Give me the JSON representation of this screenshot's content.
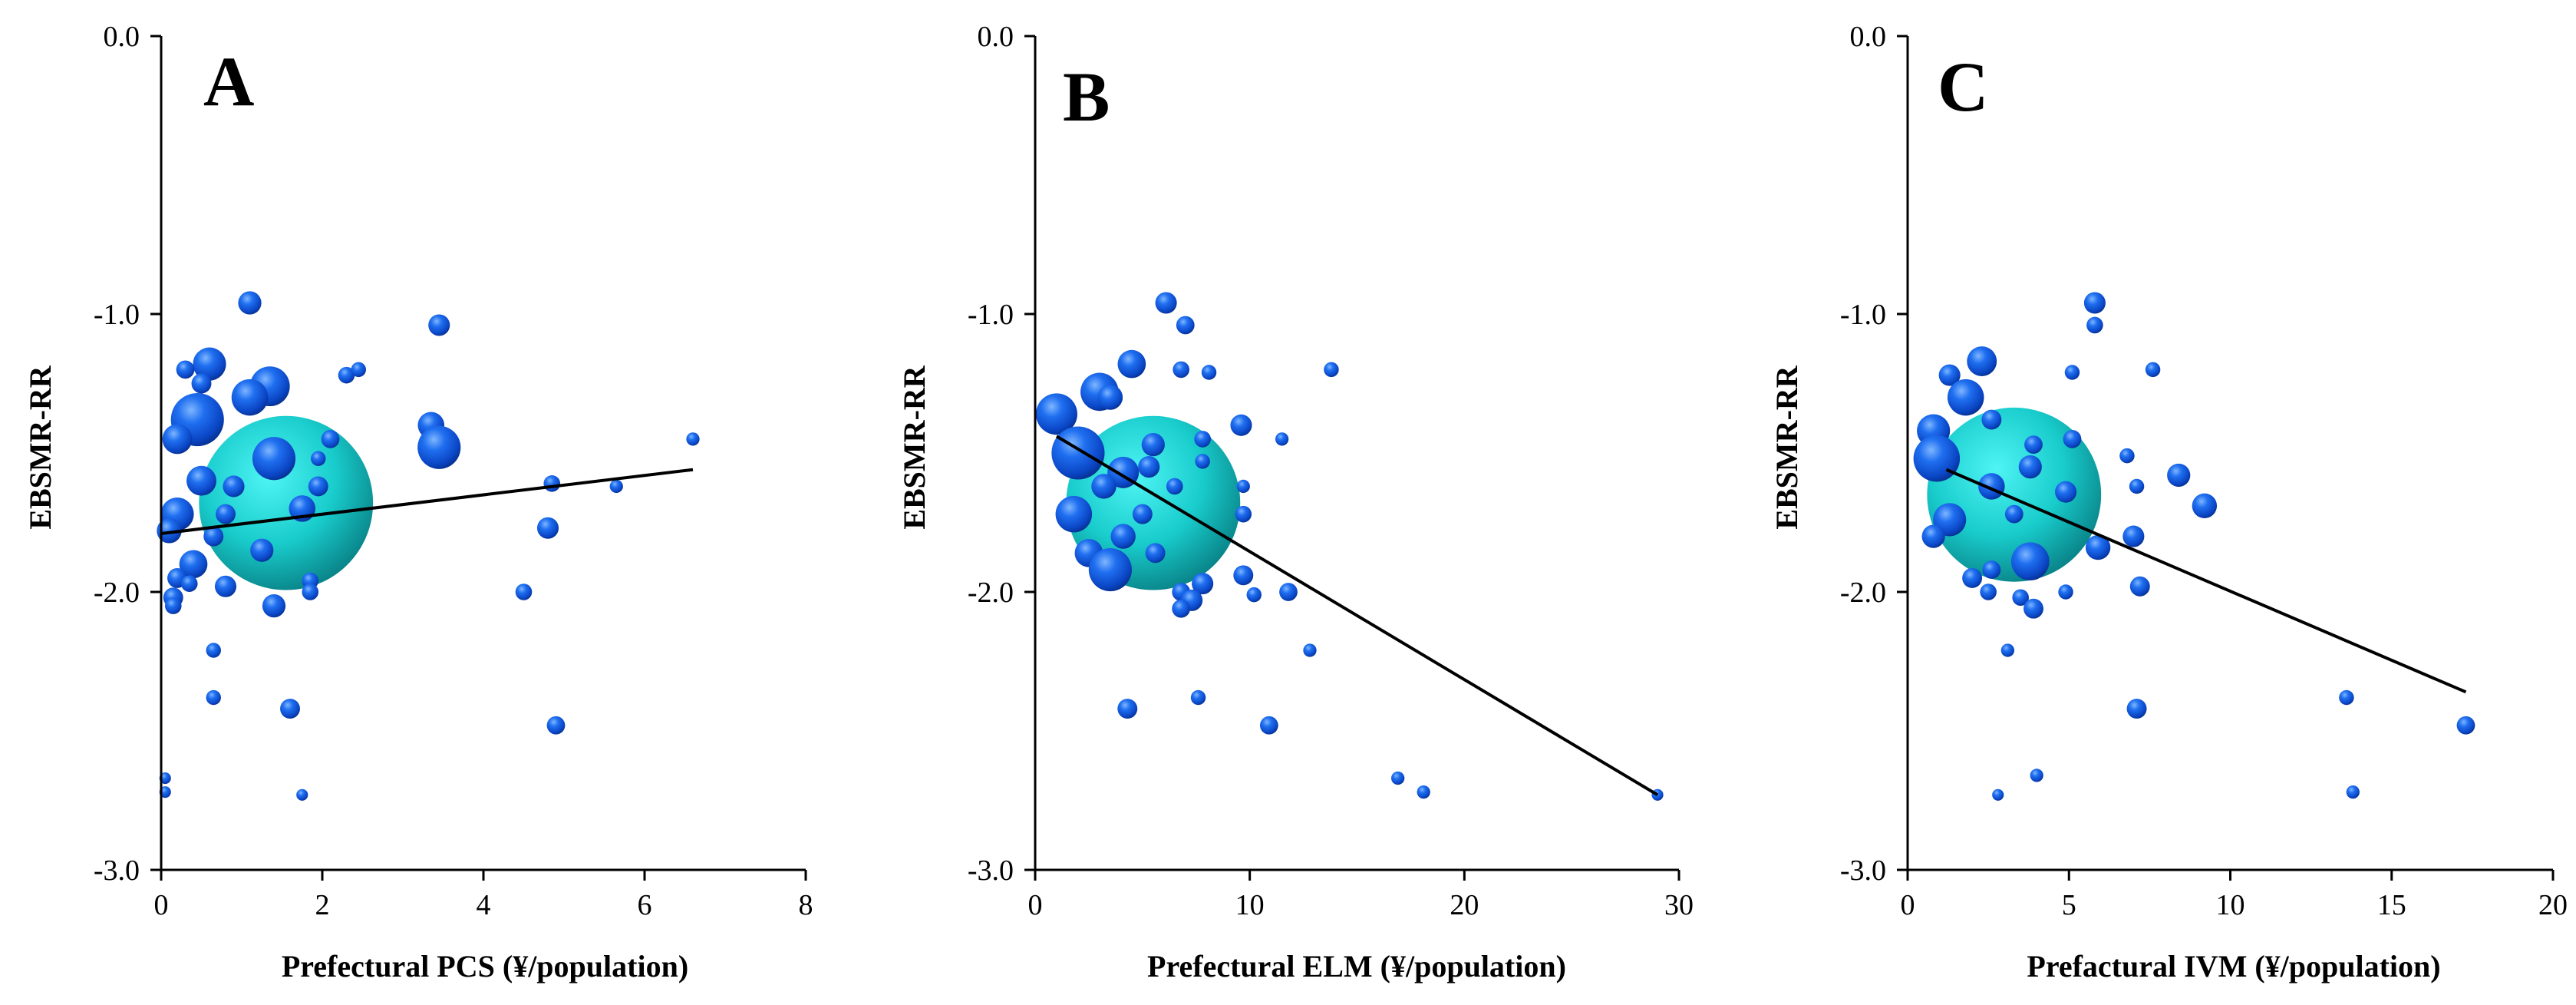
{
  "figure": {
    "panels": [
      "A",
      "B",
      "C"
    ]
  },
  "chart_data": [
    {
      "type": "scatter",
      "panel": "A",
      "xlabel": "Prefectural PCS (¥/population)",
      "ylabel": "EBSMR-RR",
      "xlim": [
        0,
        8
      ],
      "ylim": [
        -3.0,
        0.0
      ],
      "xticks": [
        0,
        2,
        4,
        6,
        8
      ],
      "xtick_labels": [
        "0",
        "2",
        "4",
        "6",
        "8"
      ],
      "yticks": [
        0.0,
        -1.0,
        -2.0,
        -3.0
      ],
      "ytick_labels": [
        "0.0",
        "-1.0",
        "-2.0",
        "-3.0"
      ],
      "trendline": {
        "x": [
          0,
          6.6
        ],
        "y": [
          -1.79,
          -1.56
        ]
      },
      "highlight": {
        "x": 1.55,
        "y": -1.68,
        "r": 5.0
      },
      "points": [
        {
          "x": 1.1,
          "y": -0.96,
          "r": 1.4
        },
        {
          "x": 3.45,
          "y": -1.04,
          "r": 1.3
        },
        {
          "x": 0.6,
          "y": -1.18,
          "r": 2.0
        },
        {
          "x": 1.35,
          "y": -1.26,
          "r": 2.4
        },
        {
          "x": 0.3,
          "y": -1.2,
          "r": 1.1
        },
        {
          "x": 0.5,
          "y": -1.25,
          "r": 1.2
        },
        {
          "x": 2.3,
          "y": -1.22,
          "r": 1.0
        },
        {
          "x": 2.45,
          "y": -1.2,
          "r": 0.9
        },
        {
          "x": 0.45,
          "y": -1.38,
          "r": 3.2
        },
        {
          "x": 1.1,
          "y": -1.3,
          "r": 2.2
        },
        {
          "x": 3.35,
          "y": -1.4,
          "r": 1.6
        },
        {
          "x": 3.45,
          "y": -1.48,
          "r": 2.6
        },
        {
          "x": 2.1,
          "y": -1.45,
          "r": 1.1
        },
        {
          "x": 1.4,
          "y": -1.52,
          "r": 2.6
        },
        {
          "x": 0.2,
          "y": -1.45,
          "r": 1.8
        },
        {
          "x": 1.95,
          "y": -1.52,
          "r": 0.9
        },
        {
          "x": 6.6,
          "y": -1.45,
          "r": 0.8
        },
        {
          "x": 0.5,
          "y": -1.6,
          "r": 1.8
        },
        {
          "x": 0.9,
          "y": -1.62,
          "r": 1.3
        },
        {
          "x": 1.95,
          "y": -1.62,
          "r": 1.2
        },
        {
          "x": 4.85,
          "y": -1.61,
          "r": 1.0
        },
        {
          "x": 5.65,
          "y": -1.62,
          "r": 0.8
        },
        {
          "x": 0.2,
          "y": -1.72,
          "r": 2.0
        },
        {
          "x": 0.8,
          "y": -1.72,
          "r": 1.2
        },
        {
          "x": 1.75,
          "y": -1.7,
          "r": 1.6
        },
        {
          "x": 0.1,
          "y": -1.78,
          "r": 1.5
        },
        {
          "x": 0.65,
          "y": -1.8,
          "r": 1.2
        },
        {
          "x": 4.8,
          "y": -1.77,
          "r": 1.3
        },
        {
          "x": 1.25,
          "y": -1.85,
          "r": 1.4
        },
        {
          "x": 0.4,
          "y": -1.9,
          "r": 1.7
        },
        {
          "x": 0.2,
          "y": -1.95,
          "r": 1.2
        },
        {
          "x": 0.35,
          "y": -1.97,
          "r": 1.0
        },
        {
          "x": 0.8,
          "y": -1.98,
          "r": 1.3
        },
        {
          "x": 1.85,
          "y": -1.96,
          "r": 1.0
        },
        {
          "x": 1.85,
          "y": -2.0,
          "r": 1.0
        },
        {
          "x": 0.15,
          "y": -2.02,
          "r": 1.2
        },
        {
          "x": 0.15,
          "y": -2.05,
          "r": 1.0
        },
        {
          "x": 1.4,
          "y": -2.05,
          "r": 1.4
        },
        {
          "x": 4.5,
          "y": -2.0,
          "r": 1.0
        },
        {
          "x": 0.65,
          "y": -2.21,
          "r": 0.9
        },
        {
          "x": 0.65,
          "y": -2.38,
          "r": 0.9
        },
        {
          "x": 1.6,
          "y": -2.42,
          "r": 1.2
        },
        {
          "x": 4.9,
          "y": -2.48,
          "r": 1.1
        },
        {
          "x": 0.05,
          "y": -2.67,
          "r": 0.7
        },
        {
          "x": 0.05,
          "y": -2.72,
          "r": 0.7
        },
        {
          "x": 1.75,
          "y": -2.73,
          "r": 0.7
        }
      ]
    },
    {
      "type": "scatter",
      "panel": "B",
      "xlabel": "Prefectural ELM (¥/population)",
      "ylabel": "EBSMR-RR",
      "xlim": [
        0,
        30
      ],
      "ylim": [
        -3.0,
        0.0
      ],
      "xticks": [
        0,
        10,
        20,
        30
      ],
      "xtick_labels": [
        "0",
        "10",
        "20",
        "30"
      ],
      "yticks": [
        0.0,
        -1.0,
        -2.0,
        -3.0
      ],
      "ytick_labels": [
        "0.0",
        "-1.0",
        "-2.0",
        "-3.0"
      ],
      "trendline": {
        "x": [
          1.0,
          29.0
        ],
        "y": [
          -1.44,
          -2.73
        ]
      },
      "highlight": {
        "x": 5.5,
        "y": -1.68,
        "r": 5.0
      },
      "points": [
        {
          "x": 6.1,
          "y": -0.96,
          "r": 1.3
        },
        {
          "x": 7.0,
          "y": -1.04,
          "r": 1.1
        },
        {
          "x": 4.5,
          "y": -1.18,
          "r": 1.7
        },
        {
          "x": 3.0,
          "y": -1.28,
          "r": 2.3
        },
        {
          "x": 6.8,
          "y": -1.2,
          "r": 1.0
        },
        {
          "x": 8.1,
          "y": -1.21,
          "r": 0.9
        },
        {
          "x": 13.8,
          "y": -1.2,
          "r": 0.9
        },
        {
          "x": 1.0,
          "y": -1.36,
          "r": 2.5
        },
        {
          "x": 3.5,
          "y": -1.3,
          "r": 1.5
        },
        {
          "x": 9.6,
          "y": -1.4,
          "r": 1.3
        },
        {
          "x": 2.0,
          "y": -1.5,
          "r": 3.2
        },
        {
          "x": 5.5,
          "y": -1.47,
          "r": 1.4
        },
        {
          "x": 11.5,
          "y": -1.45,
          "r": 0.8
        },
        {
          "x": 7.8,
          "y": -1.45,
          "r": 1.0
        },
        {
          "x": 4.1,
          "y": -1.57,
          "r": 1.9
        },
        {
          "x": 5.3,
          "y": -1.55,
          "r": 1.3
        },
        {
          "x": 7.8,
          "y": -1.53,
          "r": 0.9
        },
        {
          "x": 3.2,
          "y": -1.62,
          "r": 1.5
        },
        {
          "x": 6.5,
          "y": -1.62,
          "r": 1.0
        },
        {
          "x": 9.7,
          "y": -1.62,
          "r": 0.8
        },
        {
          "x": 1.8,
          "y": -1.72,
          "r": 2.2
        },
        {
          "x": 5.0,
          "y": -1.72,
          "r": 1.2
        },
        {
          "x": 9.7,
          "y": -1.72,
          "r": 1.0
        },
        {
          "x": 4.1,
          "y": -1.8,
          "r": 1.5
        },
        {
          "x": 2.5,
          "y": -1.86,
          "r": 1.7
        },
        {
          "x": 3.5,
          "y": -1.92,
          "r": 2.6
        },
        {
          "x": 5.6,
          "y": -1.86,
          "r": 1.2
        },
        {
          "x": 9.7,
          "y": -1.94,
          "r": 1.2
        },
        {
          "x": 7.8,
          "y": -1.97,
          "r": 1.3
        },
        {
          "x": 6.8,
          "y": -2.0,
          "r": 1.1
        },
        {
          "x": 10.2,
          "y": -2.01,
          "r": 0.9
        },
        {
          "x": 11.8,
          "y": -2.0,
          "r": 1.1
        },
        {
          "x": 7.3,
          "y": -2.03,
          "r": 1.3
        },
        {
          "x": 6.8,
          "y": -2.06,
          "r": 1.1
        },
        {
          "x": 12.8,
          "y": -2.21,
          "r": 0.8
        },
        {
          "x": 7.6,
          "y": -2.38,
          "r": 0.9
        },
        {
          "x": 4.3,
          "y": -2.42,
          "r": 1.2
        },
        {
          "x": 10.9,
          "y": -2.48,
          "r": 1.1
        },
        {
          "x": 16.9,
          "y": -2.67,
          "r": 0.8
        },
        {
          "x": 18.1,
          "y": -2.72,
          "r": 0.8
        },
        {
          "x": 29.0,
          "y": -2.73,
          "r": 0.7
        }
      ]
    },
    {
      "type": "scatter",
      "panel": "C",
      "xlabel": "Prefactural IVM (¥/population)",
      "ylabel": "EBSMR-RR",
      "xlim": [
        0,
        20
      ],
      "ylim": [
        -3.0,
        0.0
      ],
      "xticks": [
        0,
        5,
        10,
        15,
        20
      ],
      "xtick_labels": [
        "0",
        "5",
        "10",
        "15",
        "20"
      ],
      "yticks": [
        0.0,
        -1.0,
        -2.0,
        -3.0
      ],
      "ytick_labels": [
        "0.0",
        "-1.0",
        "-2.0",
        "-3.0"
      ],
      "trendline": {
        "x": [
          1.2,
          17.3
        ],
        "y": [
          -1.56,
          -2.36
        ]
      },
      "highlight": {
        "x": 3.3,
        "y": -1.65,
        "r": 5.0
      },
      "points": [
        {
          "x": 5.8,
          "y": -0.96,
          "r": 1.3
        },
        {
          "x": 5.8,
          "y": -1.04,
          "r": 1.0
        },
        {
          "x": 2.3,
          "y": -1.17,
          "r": 1.8
        },
        {
          "x": 1.3,
          "y": -1.22,
          "r": 1.3
        },
        {
          "x": 5.1,
          "y": -1.21,
          "r": 0.9
        },
        {
          "x": 7.6,
          "y": -1.2,
          "r": 0.9
        },
        {
          "x": 1.8,
          "y": -1.3,
          "r": 2.2
        },
        {
          "x": 0.8,
          "y": -1.42,
          "r": 2.0
        },
        {
          "x": 2.6,
          "y": -1.38,
          "r": 1.2
        },
        {
          "x": 0.9,
          "y": -1.52,
          "r": 2.8
        },
        {
          "x": 3.9,
          "y": -1.47,
          "r": 1.1
        },
        {
          "x": 5.1,
          "y": -1.45,
          "r": 1.1
        },
        {
          "x": 6.8,
          "y": -1.51,
          "r": 0.9
        },
        {
          "x": 8.4,
          "y": -1.58,
          "r": 1.4
        },
        {
          "x": 3.8,
          "y": -1.55,
          "r": 1.4
        },
        {
          "x": 2.6,
          "y": -1.62,
          "r": 1.6
        },
        {
          "x": 4.9,
          "y": -1.64,
          "r": 1.3
        },
        {
          "x": 7.1,
          "y": -1.62,
          "r": 0.9
        },
        {
          "x": 9.2,
          "y": -1.69,
          "r": 1.5
        },
        {
          "x": 1.3,
          "y": -1.74,
          "r": 2.0
        },
        {
          "x": 3.3,
          "y": -1.72,
          "r": 1.1
        },
        {
          "x": 5.9,
          "y": -1.84,
          "r": 1.5
        },
        {
          "x": 7.0,
          "y": -1.8,
          "r": 1.3
        },
        {
          "x": 0.8,
          "y": -1.8,
          "r": 1.4
        },
        {
          "x": 3.8,
          "y": -1.89,
          "r": 2.3
        },
        {
          "x": 2.6,
          "y": -1.92,
          "r": 1.1
        },
        {
          "x": 2.0,
          "y": -1.95,
          "r": 1.2
        },
        {
          "x": 7.2,
          "y": -1.98,
          "r": 1.2
        },
        {
          "x": 4.9,
          "y": -2.0,
          "r": 0.9
        },
        {
          "x": 2.5,
          "y": -2.0,
          "r": 1.0
        },
        {
          "x": 3.5,
          "y": -2.02,
          "r": 1.0
        },
        {
          "x": 3.9,
          "y": -2.06,
          "r": 1.2
        },
        {
          "x": 3.1,
          "y": -2.21,
          "r": 0.8
        },
        {
          "x": 13.6,
          "y": -2.38,
          "r": 0.9
        },
        {
          "x": 7.1,
          "y": -2.42,
          "r": 1.2
        },
        {
          "x": 17.3,
          "y": -2.48,
          "r": 1.1
        },
        {
          "x": 4.0,
          "y": -2.66,
          "r": 0.8
        },
        {
          "x": 13.8,
          "y": -2.72,
          "r": 0.8
        },
        {
          "x": 2.8,
          "y": -2.73,
          "r": 0.7
        }
      ]
    }
  ]
}
